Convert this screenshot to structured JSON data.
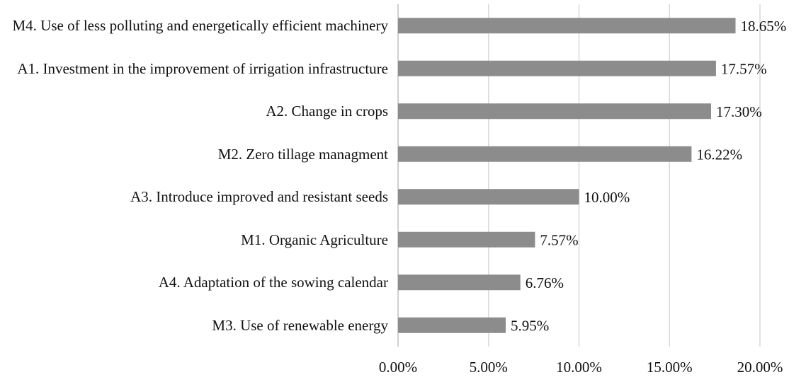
{
  "chart_data": {
    "type": "barh",
    "categories": [
      "M4. Use of less polluting and energetically efficient machinery",
      "A1.  Investment in the improvement of irrigation infrastructure",
      "A2.  Change in crops",
      "M2. Zero tillage managment",
      "A3. Introduce improved and resistant seeds",
      "M1. Organic Agriculture",
      "A4. Adaptation of the sowing calendar",
      "M3. Use of renewable energy"
    ],
    "values": [
      18.65,
      17.57,
      17.3,
      16.22,
      10.0,
      7.57,
      6.76,
      5.95
    ],
    "value_labels": [
      "18.65%",
      "17.57%",
      "17.30%",
      "16.22%",
      "10.00%",
      "7.57%",
      "6.76%",
      "5.95%"
    ],
    "color": "#8c8c8c",
    "xlim": [
      0,
      20
    ],
    "xticks": [
      {
        "value": 0,
        "label": "0.00%"
      },
      {
        "value": 5,
        "label": "5.00%"
      },
      {
        "value": 10,
        "label": "10.00%"
      },
      {
        "value": 15,
        "label": "15.00%"
      },
      {
        "value": 20,
        "label": "20.00%"
      }
    ],
    "grid": true
  }
}
